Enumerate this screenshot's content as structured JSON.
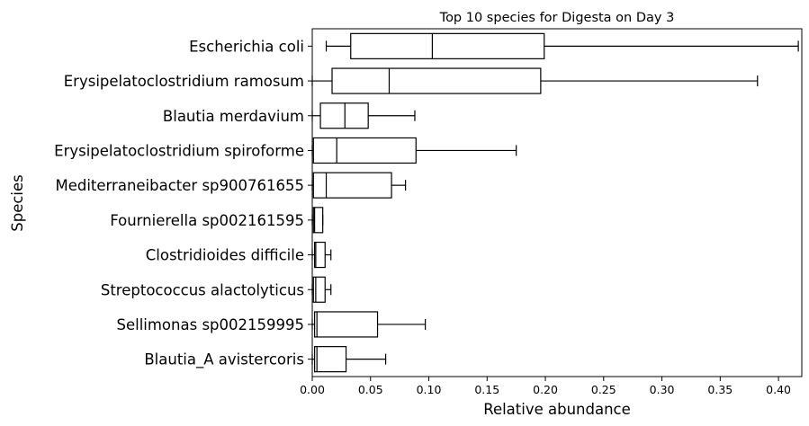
{
  "chart_data": {
    "type": "boxplot",
    "orientation": "horizontal",
    "title": "Top 10 species for Digesta on Day 3",
    "xlabel": "Relative abundance",
    "ylabel": "Species",
    "xlim": [
      0.0,
      0.42
    ],
    "xticks": [
      "0.00",
      "0.05",
      "0.10",
      "0.15",
      "0.20",
      "0.25",
      "0.30",
      "0.35",
      "0.40"
    ],
    "grid": false,
    "categories": [
      "Escherichia coli",
      "Erysipelatoclostridium ramosum",
      "Blautia merdavium",
      "Erysipelatoclostridium spiroforme",
      "Mediterraneibacter sp900761655",
      "Fournierella sp002161595",
      "Clostridioides difficile",
      "Streptococcus alactolyticus",
      "Sellimonas sp002159995",
      "Blautia_A avistercoris"
    ],
    "boxes": [
      {
        "whisker_low": 0.012,
        "q1": 0.033,
        "median": 0.103,
        "q3": 0.199,
        "whisker_high": 0.417
      },
      {
        "whisker_low": 0.0,
        "q1": 0.017,
        "median": 0.066,
        "q3": 0.196,
        "whisker_high": 0.382
      },
      {
        "whisker_low": 0.0,
        "q1": 0.007,
        "median": 0.028,
        "q3": 0.048,
        "whisker_high": 0.088
      },
      {
        "whisker_low": 0.0,
        "q1": 0.001,
        "median": 0.021,
        "q3": 0.089,
        "whisker_high": 0.175
      },
      {
        "whisker_low": 0.0,
        "q1": 0.001,
        "median": 0.012,
        "q3": 0.068,
        "whisker_high": 0.08
      },
      {
        "whisker_low": 0.0,
        "q1": 0.001,
        "median": 0.002,
        "q3": 0.009,
        "whisker_high": 0.009
      },
      {
        "whisker_low": 0.0,
        "q1": 0.002,
        "median": 0.003,
        "q3": 0.011,
        "whisker_high": 0.016
      },
      {
        "whisker_low": 0.0,
        "q1": 0.001,
        "median": 0.003,
        "q3": 0.011,
        "whisker_high": 0.016
      },
      {
        "whisker_low": 0.0,
        "q1": 0.002,
        "median": 0.004,
        "q3": 0.056,
        "whisker_high": 0.097
      },
      {
        "whisker_low": 0.0,
        "q1": 0.002,
        "median": 0.004,
        "q3": 0.029,
        "whisker_high": 0.063
      }
    ]
  }
}
